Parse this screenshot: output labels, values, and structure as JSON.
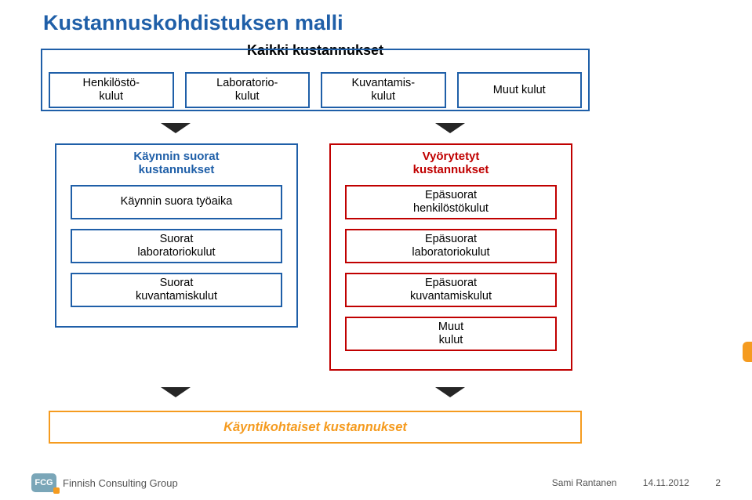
{
  "title": "Kustannuskohdistuksen malli",
  "subtitle": "Kaikki kustannukset",
  "colors": {
    "blue": "#1f5fa8",
    "red": "#c00000",
    "orange": "#f59b1f",
    "arrow_dark": "#262626"
  },
  "top_cells": [
    "Henkilöstö-\nkulut",
    "Laboratorio-\nkulut",
    "Kuvantamis-\nkulut",
    "Muut kulut"
  ],
  "mid_left": {
    "title": "Käynnin suorat\nkustannukset",
    "items": [
      "Käynnin suora työaika",
      "Suorat\nlaboratoriokulut",
      "Suorat\nkuvantamiskulut"
    ]
  },
  "mid_right": {
    "title": "Vyörytetyt\nkustannukset",
    "items": [
      "Epäsuorat\nhenkilöstökulut",
      "Epäsuorat\nlaboratoriokulut",
      "Epäsuorat\nkuvantamiskulut",
      "Muut\nkulut"
    ]
  },
  "bottom": "Käyntikohtaiset kustannukset",
  "footer": {
    "logo_text": "FCG",
    "brand": "Finnish Consulting Group",
    "author": "Sami Rantanen",
    "date": "14.11.2012",
    "page": "2"
  }
}
